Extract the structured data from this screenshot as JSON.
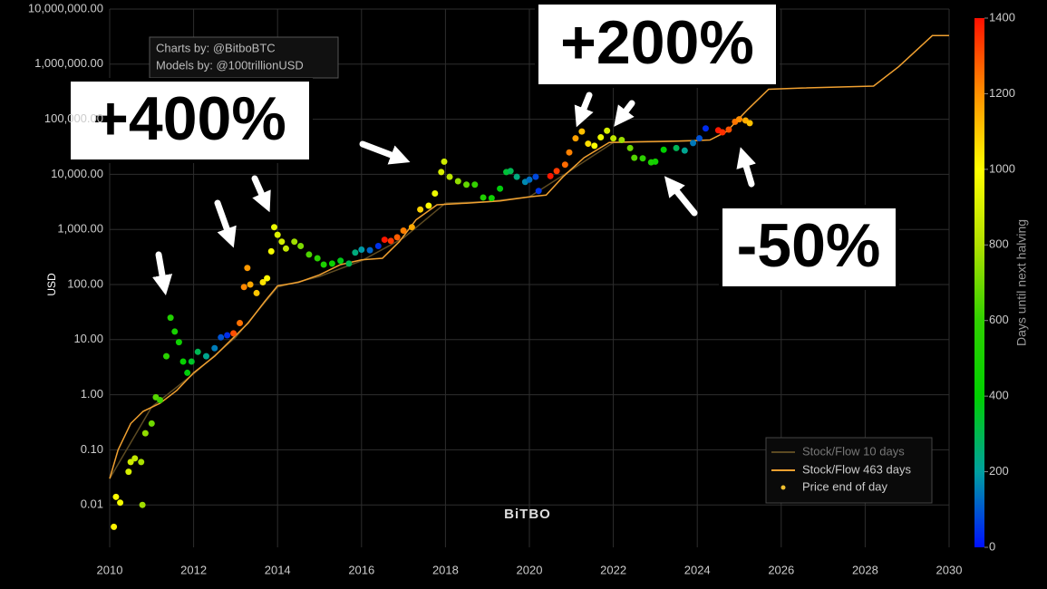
{
  "chart_data": {
    "type": "scatter",
    "y_label": "USD",
    "ylog": true,
    "grid": true,
    "xlim": [
      2010,
      2030
    ],
    "xticks": [
      2010,
      2012,
      2014,
      2016,
      2018,
      2020,
      2022,
      2024,
      2026,
      2028,
      2030
    ],
    "ylim": [
      0.0017,
      10000000
    ],
    "yticks": [
      {
        "value": 0.01,
        "label": "0.01"
      },
      {
        "value": 0.1,
        "label": "0.10"
      },
      {
        "value": 1,
        "label": "1.00"
      },
      {
        "value": 10,
        "label": "10.00"
      },
      {
        "value": 100,
        "label": "100.00"
      },
      {
        "value": 1000,
        "label": "1,000.00"
      },
      {
        "value": 10000,
        "label": "10,000.00"
      },
      {
        "value": 100000,
        "label": "100,000.00"
      },
      {
        "value": 1000000,
        "label": "1,000,000.00"
      },
      {
        "value": 10000000,
        "label": "10,000,000.00"
      }
    ],
    "colorbar_title": "Days until next halving",
    "colorlim": [
      0,
      1400
    ],
    "colorticks": [
      0,
      200,
      400,
      600,
      800,
      1000,
      1200,
      1400
    ],
    "colorscale": [
      "#0010ff",
      "#00a0a0",
      "#00d000",
      "#30d000",
      "#b0e000",
      "#ffff00",
      "#ff9000",
      "#ff1000"
    ],
    "legend_position": "lower right",
    "series": [
      {
        "name": "Stock/Flow 10 days",
        "mode": "line",
        "color": "#5c4a22",
        "x": [
          2010.0,
          2011.0,
          2012.0,
          2013.0,
          2014.0,
          2015.0,
          2016.0,
          2017.0,
          2018.0,
          2019.0,
          2020.0,
          2021.0,
          2022.0,
          2023.0,
          2024.0
        ],
        "values": [
          0.03,
          0.6,
          2.4,
          11,
          90,
          140,
          270,
          700,
          3000,
          3200,
          3900,
          12000,
          38000,
          39000,
          41000
        ]
      },
      {
        "name": "Stock/Flow 463 days",
        "mode": "line",
        "color": "#f0a030",
        "x": [
          2010.0,
          2010.2,
          2010.5,
          2010.8,
          2011.2,
          2011.6,
          2012.0,
          2012.5,
          2012.9,
          2013.3,
          2013.7,
          2014.0,
          2014.5,
          2015.0,
          2015.5,
          2016.0,
          2016.5,
          2016.9,
          2017.3,
          2017.8,
          2018.5,
          2019.3,
          2020.0,
          2020.4,
          2020.8,
          2021.3,
          2021.9,
          2022.5,
          2023.5,
          2024.3,
          2024.7,
          2025.2,
          2025.7,
          2026.5,
          2028.2,
          2028.8,
          2029.6,
          2030.0
        ],
        "values": [
          0.03,
          0.1,
          0.3,
          0.5,
          0.7,
          1.2,
          2.5,
          5,
          10,
          20,
          50,
          95,
          110,
          150,
          230,
          280,
          300,
          600,
          1500,
          2800,
          3000,
          3300,
          3900,
          4200,
          9000,
          20000,
          38000,
          39000,
          40000,
          42000,
          60000,
          150000,
          350000,
          370000,
          400000,
          900000,
          3300000,
          3300000
        ]
      },
      {
        "name": "Price end of day",
        "mode": "markers",
        "color": "#f0c030",
        "x": [
          2010.1,
          2010.15,
          2010.25,
          2010.45,
          2010.5,
          2010.6,
          2010.75,
          2010.78,
          2010.85,
          2011.0,
          2011.1,
          2011.2,
          2011.35,
          2011.45,
          2011.55,
          2011.65,
          2011.75,
          2011.85,
          2011.95,
          2012.1,
          2012.3,
          2012.5,
          2012.65,
          2012.8,
          2012.95,
          2013.1,
          2013.2,
          2013.28,
          2013.35,
          2013.5,
          2013.65,
          2013.75,
          2013.85,
          2013.92,
          2014.0,
          2014.1,
          2014.2,
          2014.4,
          2014.55,
          2014.75,
          2014.95,
          2015.1,
          2015.3,
          2015.5,
          2015.7,
          2015.85,
          2016.0,
          2016.2,
          2016.4,
          2016.55,
          2016.7,
          2016.85,
          2017.0,
          2017.2,
          2017.4,
          2017.6,
          2017.75,
          2017.9,
          2017.97,
          2018.1,
          2018.3,
          2018.5,
          2018.7,
          2018.9,
          2019.1,
          2019.3,
          2019.45,
          2019.55,
          2019.7,
          2019.9,
          2020.0,
          2020.15,
          2020.22,
          2020.5,
          2020.65,
          2020.85,
          2020.95,
          2021.1,
          2021.25,
          2021.4,
          2021.55,
          2021.7,
          2021.85,
          2022.0,
          2022.2,
          2022.4,
          2022.5,
          2022.7,
          2022.9,
          2023.0,
          2023.2,
          2023.5,
          2023.7,
          2023.9,
          2024.05,
          2024.2,
          2024.5,
          2024.6,
          2024.75,
          2024.9,
          2025.0,
          2025.15,
          2025.25
        ],
        "values": [
          0.004,
          0.014,
          0.011,
          0.04,
          0.06,
          0.07,
          0.06,
          0.01,
          0.2,
          0.3,
          0.9,
          0.8,
          5,
          25,
          14,
          9,
          4,
          2.5,
          4,
          6,
          5,
          7,
          11,
          12,
          13,
          20,
          90,
          200,
          100,
          70,
          110,
          130,
          400,
          1100,
          800,
          600,
          450,
          600,
          500,
          350,
          300,
          230,
          240,
          270,
          240,
          380,
          430,
          420,
          500,
          650,
          620,
          720,
          950,
          1100,
          2300,
          2700,
          4500,
          11000,
          17000,
          9000,
          7500,
          6500,
          6500,
          3800,
          3700,
          5500,
          11000,
          11500,
          9000,
          7300,
          8000,
          9000,
          5000,
          9300,
          11500,
          15000,
          25000,
          45000,
          60000,
          36000,
          33000,
          47000,
          62000,
          45000,
          42000,
          30000,
          20000,
          19500,
          16500,
          17000,
          28000,
          30000,
          27000,
          37000,
          45000,
          68000,
          63000,
          58000,
          65000,
          90000,
          100000,
          95000,
          85000
        ],
        "days": [
          1026,
          1007,
          971,
          898,
          880,
          843,
          788,
          777,
          752,
          697,
          661,
          624,
          569,
          533,
          496,
          460,
          423,
          387,
          350,
          296,
          223,
          150,
          95,
          40,
          1303,
          1248,
          1212,
          1183,
          1157,
          1102,
          1048,
          1011,
          975,
          949,
          920,
          883,
          847,
          774,
          719,
          646,
          573,
          518,
          445,
          372,
          299,
          245,
          190,
          117,
          44,
          1391,
          1337,
          1282,
          1227,
          1154,
          1081,
          1008,
          953,
          898,
          873,
          825,
          752,
          679,
          606,
          533,
          460,
          387,
          332,
          296,
          241,
          168,
          131,
          77,
          51,
          1388,
          1333,
          1260,
          1224,
          1169,
          1114,
          1059,
          1004,
          950,
          895,
          840,
          767,
          694,
          657,
          584,
          511,
          475,
          402,
          292,
          219,
          146,
          91,
          37,
          1388,
          1351,
          1297,
          1242,
          1205,
          1151,
          1114
        ]
      }
    ],
    "annotations": {
      "credit_1": "Charts by: @BitboBTC",
      "credit_2": "Models by: @100trillionUSD",
      "gain_1": "+400%",
      "gain_2": "+200%",
      "drop": "-50%",
      "watermark": "BiTBO"
    }
  }
}
